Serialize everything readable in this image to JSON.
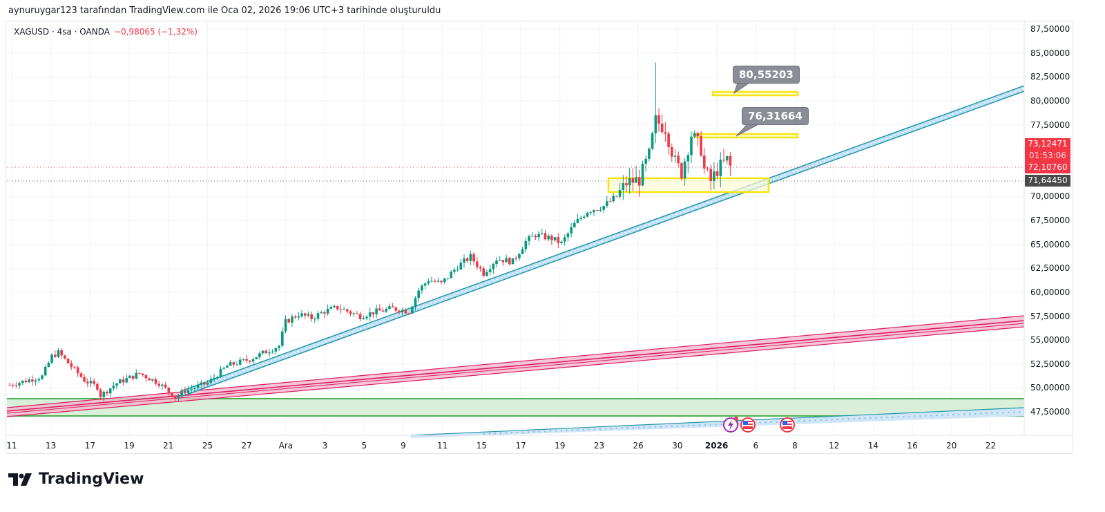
{
  "caption": "aynuruygar123 tarafından TradingView.com ile Oca 02, 2026 19:06 UTC+3 tarihinde oluşturuldu",
  "legend": {
    "symbol": "XAGUSD · 4sa · OANDA",
    "change": "−0,98065 (−1,32%)"
  },
  "price_labels": {
    "last": "73,12471",
    "countdown": "01:53:06",
    "red_line": "72,10760",
    "gray_line": "71,64450"
  },
  "callouts": [
    "80,55203",
    "76,31664"
  ],
  "brand": "TradingView",
  "colors": {
    "up": "#089981",
    "down": "#f23645",
    "trend_blue": "#2196a8",
    "channel_pink": "#e91e63",
    "zone_green": "#4caf50",
    "zone_yellow": "#f5e50f"
  },
  "chart_data": {
    "type": "candlestick",
    "symbol": "XAGUSD",
    "timeframe": "4sa",
    "ylim": [
      45.5,
      88.5
    ],
    "y_ticks": [
      "87,50000",
      "85,00000",
      "82,50000",
      "80,00000",
      "77,50000",
      "70,00000",
      "67,50000",
      "65,00000",
      "62,50000",
      "60,00000",
      "57,50000",
      "55,00000",
      "52,50000",
      "50,00000",
      "47,50000"
    ],
    "y_tick_values": [
      87.5,
      85,
      82.5,
      80,
      77.5,
      70,
      67.5,
      65,
      62.5,
      60,
      57.5,
      55,
      52.5,
      50,
      47.5
    ],
    "x_ticks": [
      "11",
      "13",
      "17",
      "19",
      "21",
      "25",
      "27",
      "Ara",
      "3",
      "5",
      "9",
      "11",
      "15",
      "17",
      "19",
      "23",
      "26",
      "30",
      "2026",
      "6",
      "8",
      "12",
      "14",
      "16",
      "20",
      "22"
    ],
    "close_path_bar_price": [
      [
        0,
        50.3
      ],
      [
        10,
        51.2
      ],
      [
        13,
        53.3
      ],
      [
        15,
        53.7
      ],
      [
        18,
        52.6
      ],
      [
        23,
        50.8
      ],
      [
        27,
        50.1
      ],
      [
        28,
        49.2
      ],
      [
        33,
        50.5
      ],
      [
        40,
        51.5
      ],
      [
        46,
        50.5
      ],
      [
        51,
        49.0
      ],
      [
        54,
        49.7
      ],
      [
        61,
        50.5
      ],
      [
        67,
        52.3
      ],
      [
        74,
        53.0
      ],
      [
        81,
        54.1
      ],
      [
        83,
        54.4
      ],
      [
        85,
        56.9
      ],
      [
        89,
        57.7
      ],
      [
        93,
        57.3
      ],
      [
        97,
        58.0
      ],
      [
        101,
        58.4
      ],
      [
        108,
        57.5
      ],
      [
        112,
        57.9
      ],
      [
        118,
        58.3
      ],
      [
        123,
        58.0
      ],
      [
        126,
        60.2
      ],
      [
        129,
        61.3
      ],
      [
        133,
        60.9
      ],
      [
        138,
        62.7
      ],
      [
        142,
        63.7
      ],
      [
        146,
        62.0
      ],
      [
        150,
        63.5
      ],
      [
        155,
        63.2
      ],
      [
        159,
        65.3
      ],
      [
        162,
        66.0
      ],
      [
        167,
        65.6
      ],
      [
        170,
        65.1
      ],
      [
        174,
        67.1
      ],
      [
        178,
        68.5
      ],
      [
        183,
        69.0
      ],
      [
        187,
        70.0
      ],
      [
        190,
        71.4
      ],
      [
        194,
        71.8
      ],
      [
        197,
        74.3
      ],
      [
        199,
        77.9
      ],
      [
        202,
        77.2
      ],
      [
        205,
        73.6
      ],
      [
        207,
        72.5
      ],
      [
        210,
        76.5
      ],
      [
        213,
        75.0
      ],
      [
        214,
        72.8
      ],
      [
        216,
        71.6
      ],
      [
        218,
        72.8
      ],
      [
        221,
        73.8
      ],
      [
        222,
        73.1
      ]
    ],
    "spike_high": 84.0,
    "horizontal_levels": [
      72.1076,
      71.6445
    ],
    "zones": {
      "green": [
        47.0,
        48.9
      ],
      "yellow_support": [
        70.6,
        72.0
      ],
      "yellow_80": 80.55203,
      "yellow_76": 76.31664
    }
  }
}
